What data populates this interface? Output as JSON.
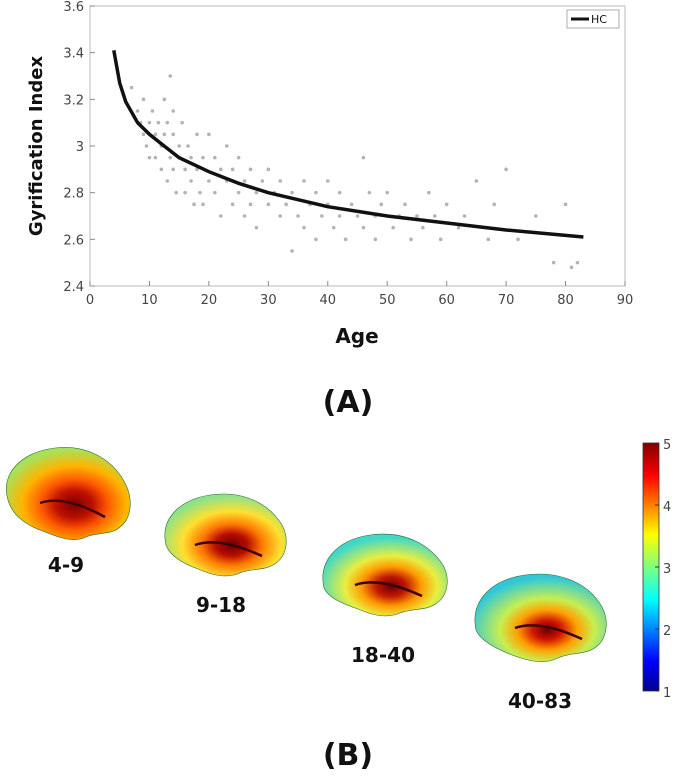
{
  "chart_data": {
    "type": "scatter",
    "title": "",
    "xlabel": "Age",
    "ylabel": "Gyrification Index",
    "xlim": [
      0,
      90
    ],
    "ylim": [
      2.4,
      3.6
    ],
    "xticks": [
      "0",
      "10",
      "20",
      "30",
      "40",
      "50",
      "60",
      "70",
      "80",
      "90"
    ],
    "yticks": [
      "2.4",
      "2.6",
      "2.8",
      "3",
      "3.2",
      "3.4",
      "3.6"
    ],
    "legend": {
      "position": "top-right",
      "entries": [
        "HC"
      ]
    },
    "fit_series": {
      "name": "HC",
      "color": "#111111",
      "x": [
        4,
        5,
        6,
        8,
        10,
        12,
        15,
        20,
        25,
        30,
        40,
        50,
        60,
        70,
        83
      ],
      "y": [
        3.41,
        3.27,
        3.19,
        3.1,
        3.05,
        3.01,
        2.95,
        2.89,
        2.84,
        2.8,
        2.74,
        2.7,
        2.67,
        2.64,
        2.61
      ]
    },
    "scatter_series": {
      "name": "subjects",
      "color": "#9a9a9a",
      "x": [
        7,
        8,
        8.5,
        9,
        9,
        9.5,
        10,
        10,
        10.5,
        11,
        11,
        11.5,
        12,
        12,
        12.5,
        12.5,
        13,
        13,
        13.5,
        13.5,
        14,
        14,
        14,
        14.5,
        15,
        15,
        15.5,
        16,
        16,
        16.5,
        17,
        17,
        17.5,
        18,
        18,
        18.5,
        19,
        19,
        20,
        20,
        21,
        21,
        22,
        22,
        23,
        23,
        24,
        24,
        25,
        25,
        26,
        26,
        27,
        27,
        28,
        28,
        29,
        30,
        30,
        31,
        32,
        32,
        33,
        34,
        34,
        35,
        36,
        36,
        37,
        38,
        38,
        39,
        40,
        40,
        41,
        42,
        42,
        43,
        44,
        45,
        46,
        46,
        47,
        48,
        48,
        49,
        50,
        51,
        52,
        53,
        54,
        55,
        56,
        57,
        58,
        59,
        60,
        62,
        63,
        65,
        67,
        68,
        70,
        72,
        75,
        78,
        80,
        81,
        82
      ],
      "y": [
        3.25,
        3.15,
        3.1,
        3.2,
        3.05,
        3.0,
        3.1,
        2.95,
        3.15,
        3.05,
        2.95,
        3.1,
        3.0,
        2.9,
        3.2,
        3.05,
        3.1,
        2.85,
        3.3,
        2.95,
        3.05,
        2.9,
        3.15,
        2.8,
        3.0,
        2.95,
        3.1,
        2.9,
        2.8,
        3.0,
        2.95,
        2.85,
        2.75,
        2.9,
        3.05,
        2.8,
        2.95,
        2.75,
        2.85,
        3.05,
        2.8,
        2.95,
        2.9,
        2.7,
        2.85,
        3.0,
        2.75,
        2.9,
        2.8,
        2.95,
        2.85,
        2.7,
        2.9,
        2.75,
        2.8,
        2.65,
        2.85,
        2.75,
        2.9,
        2.8,
        2.7,
        2.85,
        2.75,
        2.55,
        2.8,
        2.7,
        2.85,
        2.65,
        2.75,
        2.8,
        2.6,
        2.7,
        2.85,
        2.75,
        2.65,
        2.8,
        2.7,
        2.6,
        2.75,
        2.7,
        2.95,
        2.65,
        2.8,
        2.7,
        2.6,
        2.75,
        2.8,
        2.65,
        2.7,
        2.75,
        2.6,
        2.7,
        2.65,
        2.8,
        2.7,
        2.6,
        2.75,
        2.65,
        2.7,
        2.85,
        2.6,
        2.75,
        2.9,
        2.6,
        2.7,
        2.5,
        2.75,
        2.48,
        2.5
      ]
    }
  },
  "panels": {
    "a_label": "(A)",
    "b_label": "(B)"
  },
  "brains": [
    {
      "label": "4-9"
    },
    {
      "label": "9-18"
    },
    {
      "label": "18-40"
    },
    {
      "label": "40-83"
    }
  ],
  "colorbar": {
    "ticks": [
      "5",
      "4",
      "3",
      "2",
      "1"
    ],
    "min": 1,
    "max": 5
  }
}
